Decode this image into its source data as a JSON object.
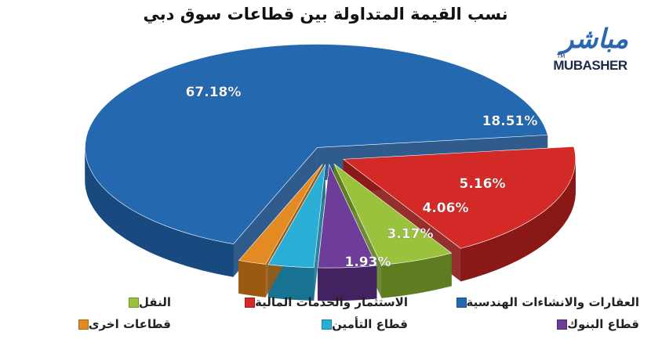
{
  "chart_data": {
    "type": "pie",
    "title": "نسب القيمة المتداولة بين قطاعات سوق دبي",
    "slices": [
      {
        "label": "العقارات والانشاءات الهندسية",
        "value": 67.18,
        "display": "67.18%",
        "color": "#2469b0",
        "side": "#184a80"
      },
      {
        "label": "الاستثمار والخدمات المالية",
        "value": 18.51,
        "display": "18.51%",
        "color": "#d42a27",
        "side": "#8a1816"
      },
      {
        "label": "النقل",
        "value": 5.16,
        "display": "5.16%",
        "color": "#9ac23c",
        "side": "#5f7d20"
      },
      {
        "label": "قطاع البنوك",
        "value": 4.06,
        "display": "4.06%",
        "color": "#6d3d99",
        "side": "#43235f"
      },
      {
        "label": "قطاع التأمين",
        "value": 3.17,
        "display": "3.17%",
        "color": "#2aaed6",
        "side": "#187392"
      },
      {
        "label": "قطاعات اخرى",
        "value": 1.93,
        "display": "1.93%",
        "color": "#e48a22",
        "side": "#9a5a12"
      }
    ],
    "legend_position": "bottom"
  },
  "logo": {
    "arabic": "مباشر",
    "latin": "MUBASHER",
    "tm": "TM"
  }
}
